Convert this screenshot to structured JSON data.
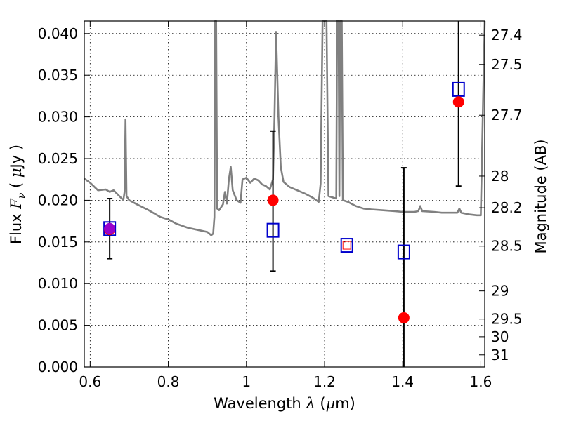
{
  "chart_data": {
    "type": "scatter",
    "xlabel_main": "Wavelength  ",
    "xlabel_sym": "λ",
    "xlabel_unit_open": " (",
    "xlabel_unit_mu": "μ",
    "xlabel_unit_close": "m)",
    "ylabel_main": "Flux  ",
    "ylabel_sym": "F",
    "ylabel_sub": "ν",
    "ylabel_unit_open": "  ( ",
    "ylabel_unit_mu": "μ",
    "ylabel_unit_close": "Jy )",
    "y2label": "Magnitude (AB)",
    "xlim": [
      0.585,
      1.61
    ],
    "ylim": [
      0.0,
      0.0415
    ],
    "x_ticks": [
      0.6,
      0.8,
      1.0,
      1.2,
      1.4,
      1.6
    ],
    "x_tick_labels": [
      "0.6",
      "0.8",
      "1",
      "1.2",
      "1.4",
      "1.6"
    ],
    "y_ticks": [
      0.0,
      0.005,
      0.01,
      0.015,
      0.02,
      0.025,
      0.03,
      0.035,
      0.04
    ],
    "y_tick_labels": [
      "0.000",
      "0.005",
      "0.010",
      "0.015",
      "0.020",
      "0.025",
      "0.030",
      "0.035",
      "0.040"
    ],
    "y2_ticks": [
      {
        "label": "27.4",
        "flux": 0.0398
      },
      {
        "label": "27.5",
        "flux": 0.0363
      },
      {
        "label": "27.7",
        "flux": 0.0302
      },
      {
        "label": "28",
        "flux": 0.0229
      },
      {
        "label": "28.2",
        "flux": 0.0191
      },
      {
        "label": "28.5",
        "flux": 0.0145
      },
      {
        "label": "29",
        "flux": 0.00912
      },
      {
        "label": "29.5",
        "flux": 0.00575
      },
      {
        "label": "30",
        "flux": 0.00363
      },
      {
        "label": "31",
        "flux": 0.00145
      }
    ],
    "grid": true,
    "series": [
      {
        "style": "model-spectrum",
        "color": "#808080",
        "points": [
          [
            0.585,
            0.0226
          ],
          [
            0.6,
            0.0221
          ],
          [
            0.62,
            0.0212
          ],
          [
            0.64,
            0.0213
          ],
          [
            0.65,
            0.021
          ],
          [
            0.66,
            0.0212
          ],
          [
            0.675,
            0.0205
          ],
          [
            0.685,
            0.02
          ],
          [
            0.688,
            0.021
          ],
          [
            0.6905,
            0.0297
          ],
          [
            0.693,
            0.0205
          ],
          [
            0.7,
            0.02
          ],
          [
            0.72,
            0.0195
          ],
          [
            0.75,
            0.0188
          ],
          [
            0.78,
            0.018
          ],
          [
            0.8,
            0.0177
          ],
          [
            0.82,
            0.0172
          ],
          [
            0.85,
            0.0167
          ],
          [
            0.88,
            0.0164
          ],
          [
            0.9,
            0.0162
          ],
          [
            0.91,
            0.0158
          ],
          [
            0.915,
            0.016
          ],
          [
            0.918,
            0.018
          ],
          [
            0.92,
            0.0415
          ],
          [
            0.9225,
            0.0415
          ],
          [
            0.925,
            0.019
          ],
          [
            0.93,
            0.0188
          ],
          [
            0.94,
            0.0195
          ],
          [
            0.945,
            0.021
          ],
          [
            0.95,
            0.0196
          ],
          [
            0.955,
            0.0225
          ],
          [
            0.96,
            0.024
          ],
          [
            0.965,
            0.0212
          ],
          [
            0.97,
            0.0206
          ],
          [
            0.975,
            0.02
          ],
          [
            0.985,
            0.0197
          ],
          [
            0.99,
            0.0225
          ],
          [
            1.0,
            0.0227
          ],
          [
            1.01,
            0.0221
          ],
          [
            1.02,
            0.0226
          ],
          [
            1.03,
            0.0224
          ],
          [
            1.04,
            0.0219
          ],
          [
            1.05,
            0.0217
          ],
          [
            1.06,
            0.0213
          ],
          [
            1.068,
            0.0225
          ],
          [
            1.072,
            0.03
          ],
          [
            1.076,
            0.0402
          ],
          [
            1.082,
            0.03
          ],
          [
            1.088,
            0.024
          ],
          [
            1.095,
            0.0222
          ],
          [
            1.11,
            0.0216
          ],
          [
            1.13,
            0.0212
          ],
          [
            1.15,
            0.0208
          ],
          [
            1.17,
            0.0203
          ],
          [
            1.185,
            0.0198
          ],
          [
            1.19,
            0.022
          ],
          [
            1.195,
            0.0415
          ],
          [
            1.205,
            0.0415
          ],
          [
            1.21,
            0.0205
          ],
          [
            1.23,
            0.0202
          ],
          [
            1.232,
            0.0415
          ],
          [
            1.236,
            0.0415
          ],
          [
            1.238,
            0.0205
          ],
          [
            1.24,
            0.0415
          ],
          [
            1.244,
            0.0415
          ],
          [
            1.247,
            0.02
          ],
          [
            1.26,
            0.0198
          ],
          [
            1.28,
            0.0193
          ],
          [
            1.3,
            0.019
          ],
          [
            1.32,
            0.0189
          ],
          [
            1.35,
            0.0188
          ],
          [
            1.38,
            0.0187
          ],
          [
            1.4,
            0.0186
          ],
          [
            1.43,
            0.0186
          ],
          [
            1.44,
            0.0187
          ],
          [
            1.445,
            0.0193
          ],
          [
            1.45,
            0.0187
          ],
          [
            1.48,
            0.0186
          ],
          [
            1.5,
            0.0185
          ],
          [
            1.52,
            0.0185
          ],
          [
            1.54,
            0.0185
          ],
          [
            1.545,
            0.019
          ],
          [
            1.55,
            0.0185
          ],
          [
            1.57,
            0.0183
          ],
          [
            1.59,
            0.0182
          ],
          [
            1.6,
            0.0182
          ],
          [
            1.605,
            0.03
          ],
          [
            1.61,
            0.0415
          ]
        ]
      },
      {
        "style": "observed-flux",
        "color": "#ff0000",
        "points": [
          {
            "x": 0.65,
            "y": 0.0165,
            "err_low": 0.013,
            "err_high": 0.0202
          },
          {
            "x": 1.068,
            "y": 0.02,
            "err_low": 0.0115,
            "err_high": 0.0283
          },
          {
            "x": 1.403,
            "y": 0.0059,
            "err_low": 0.0,
            "err_high": 0.0239
          },
          {
            "x": 1.543,
            "y": 0.0318,
            "err_low": 0.0217,
            "err_high": 0.0415
          }
        ]
      },
      {
        "style": "synthetic-photometry",
        "color": "#0000cc",
        "points": [
          {
            "x": 0.65,
            "y": 0.0166
          },
          {
            "x": 1.068,
            "y": 0.0164
          },
          {
            "x": 1.257,
            "y": 0.0146
          },
          {
            "x": 1.403,
            "y": 0.0138
          },
          {
            "x": 1.543,
            "y": 0.0333
          }
        ]
      },
      {
        "style": "small-inner-marker",
        "color": "#ff0000",
        "points": [
          {
            "x": 1.257,
            "y": 0.0146
          }
        ]
      },
      {
        "style": "overlap-marker",
        "color": "#9900cc",
        "points": [
          {
            "x": 0.65,
            "y": 0.0166
          }
        ]
      }
    ]
  }
}
